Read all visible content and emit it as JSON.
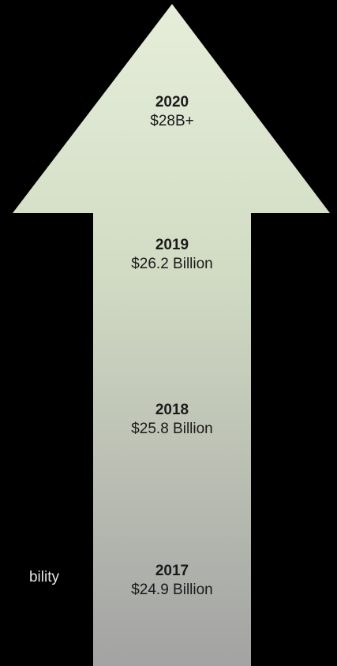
{
  "side_text": "bility",
  "milestones": [
    {
      "year": "2020",
      "value": "$28B+"
    },
    {
      "year": "2019",
      "value": "$26.2 Billion"
    },
    {
      "year": "2018",
      "value": "$25.8 Billion"
    },
    {
      "year": "2017",
      "value": "$24.9 Billion"
    }
  ],
  "colors": {
    "background": "#000000",
    "arrow_top": "#e4ecd8",
    "arrow_bottom": "#a4a4a4",
    "text": "#1a1a1a"
  }
}
